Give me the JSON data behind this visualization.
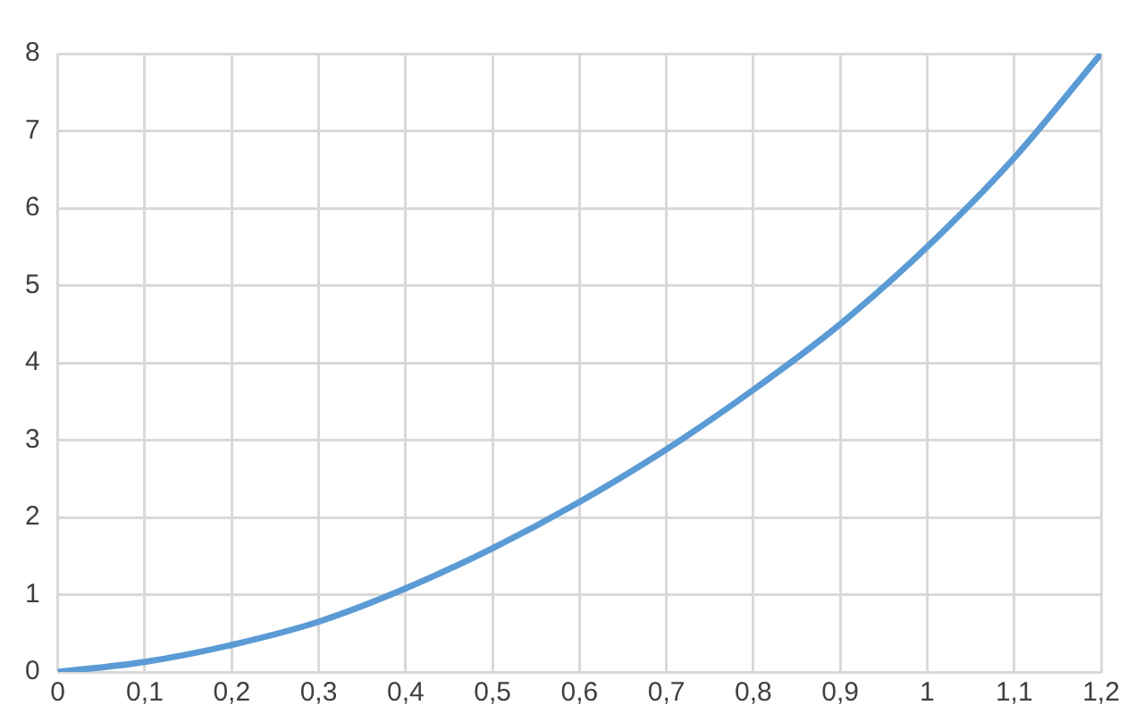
{
  "chart_data": {
    "type": "line",
    "x": [
      0,
      0.1,
      0.2,
      0.3,
      0.4,
      0.5,
      0.6,
      0.7,
      0.8,
      0.9,
      1,
      1.1,
      1.2
    ],
    "series": [
      {
        "color": "#5b9bd5",
        "values": [
          0,
          0.13,
          0.35,
          0.65,
          1.08,
          1.6,
          2.2,
          2.88,
          3.65,
          4.5,
          5.5,
          6.65,
          8
        ]
      }
    ],
    "xlim": [
      0,
      1.2
    ],
    "xticks": [
      0,
      {
        "value": 0.1,
        "label": "0,1"
      },
      {
        "value": 0.2,
        "label": "0,2"
      },
      {
        "value": 0.3,
        "label": "0,3"
      },
      {
        "value": 0.4,
        "label": "0,4"
      },
      {
        "value": 0.5,
        "label": "0,5"
      },
      {
        "value": 0.6,
        "label": "0,6"
      },
      {
        "value": 0.7,
        "label": "0,7"
      },
      {
        "value": 0.8,
        "label": "0,8"
      },
      {
        "value": 0.9,
        "label": "0,9"
      },
      1,
      {
        "value": 1.1,
        "label": "1,1"
      },
      {
        "value": 1.2,
        "label": "1,2"
      }
    ],
    "ylim": [
      0,
      8
    ],
    "yticks": [
      0,
      1,
      2,
      3,
      4,
      5,
      6,
      7,
      8
    ],
    "grid": true,
    "legend": false,
    "marker": "none",
    "line_style": "solid"
  }
}
